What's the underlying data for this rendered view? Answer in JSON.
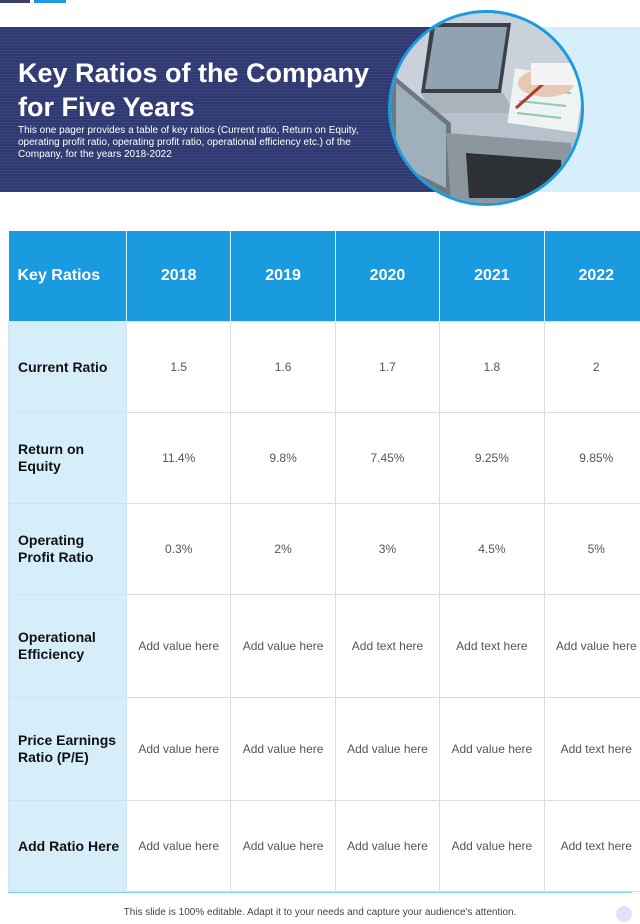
{
  "header": {
    "title": "Key Ratios of the Company for Five Years",
    "subtitle": "This one pager provides a table of key ratios (Current ratio, Return on Equity, operating profit ratio, operating profit ratio, operational efficiency etc.) of the Company, for the years 2018-2022"
  },
  "colors": {
    "banner": "#2f3a72",
    "accent": "#1a9be0",
    "label_column": "#d6eef9"
  },
  "table": {
    "header": [
      "Key Ratios",
      "2018",
      "2019",
      "2020",
      "2021",
      "2022"
    ],
    "rows": [
      {
        "label": "Current Ratio",
        "cells": [
          "1.5",
          "1.6",
          "1.7",
          "1.8",
          "2"
        ]
      },
      {
        "label": "Return on Equity",
        "cells": [
          "11.4%",
          "9.8%",
          "7.45%",
          "9.25%",
          "9.85%"
        ]
      },
      {
        "label": "Operating Profit Ratio",
        "cells": [
          "0.3%",
          "2%",
          "3%",
          "4.5%",
          "5%"
        ]
      },
      {
        "label": "Operational Efficiency",
        "cells": [
          "Add value here",
          "Add value here",
          "Add text here",
          "Add text here",
          "Add value here"
        ]
      },
      {
        "label": "Price Earnings Ratio (P/E)",
        "cells": [
          "Add value here",
          "Add value here",
          "Add value here",
          "Add value here",
          "Add text here"
        ]
      },
      {
        "label": "Add Ratio Here",
        "cells": [
          "Add value here",
          "Add value here",
          "Add value here",
          "Add value here",
          "Add text here"
        ]
      }
    ]
  },
  "footer": {
    "note": "This slide is 100% editable. Adapt it to your needs and capture your audience's attention."
  }
}
